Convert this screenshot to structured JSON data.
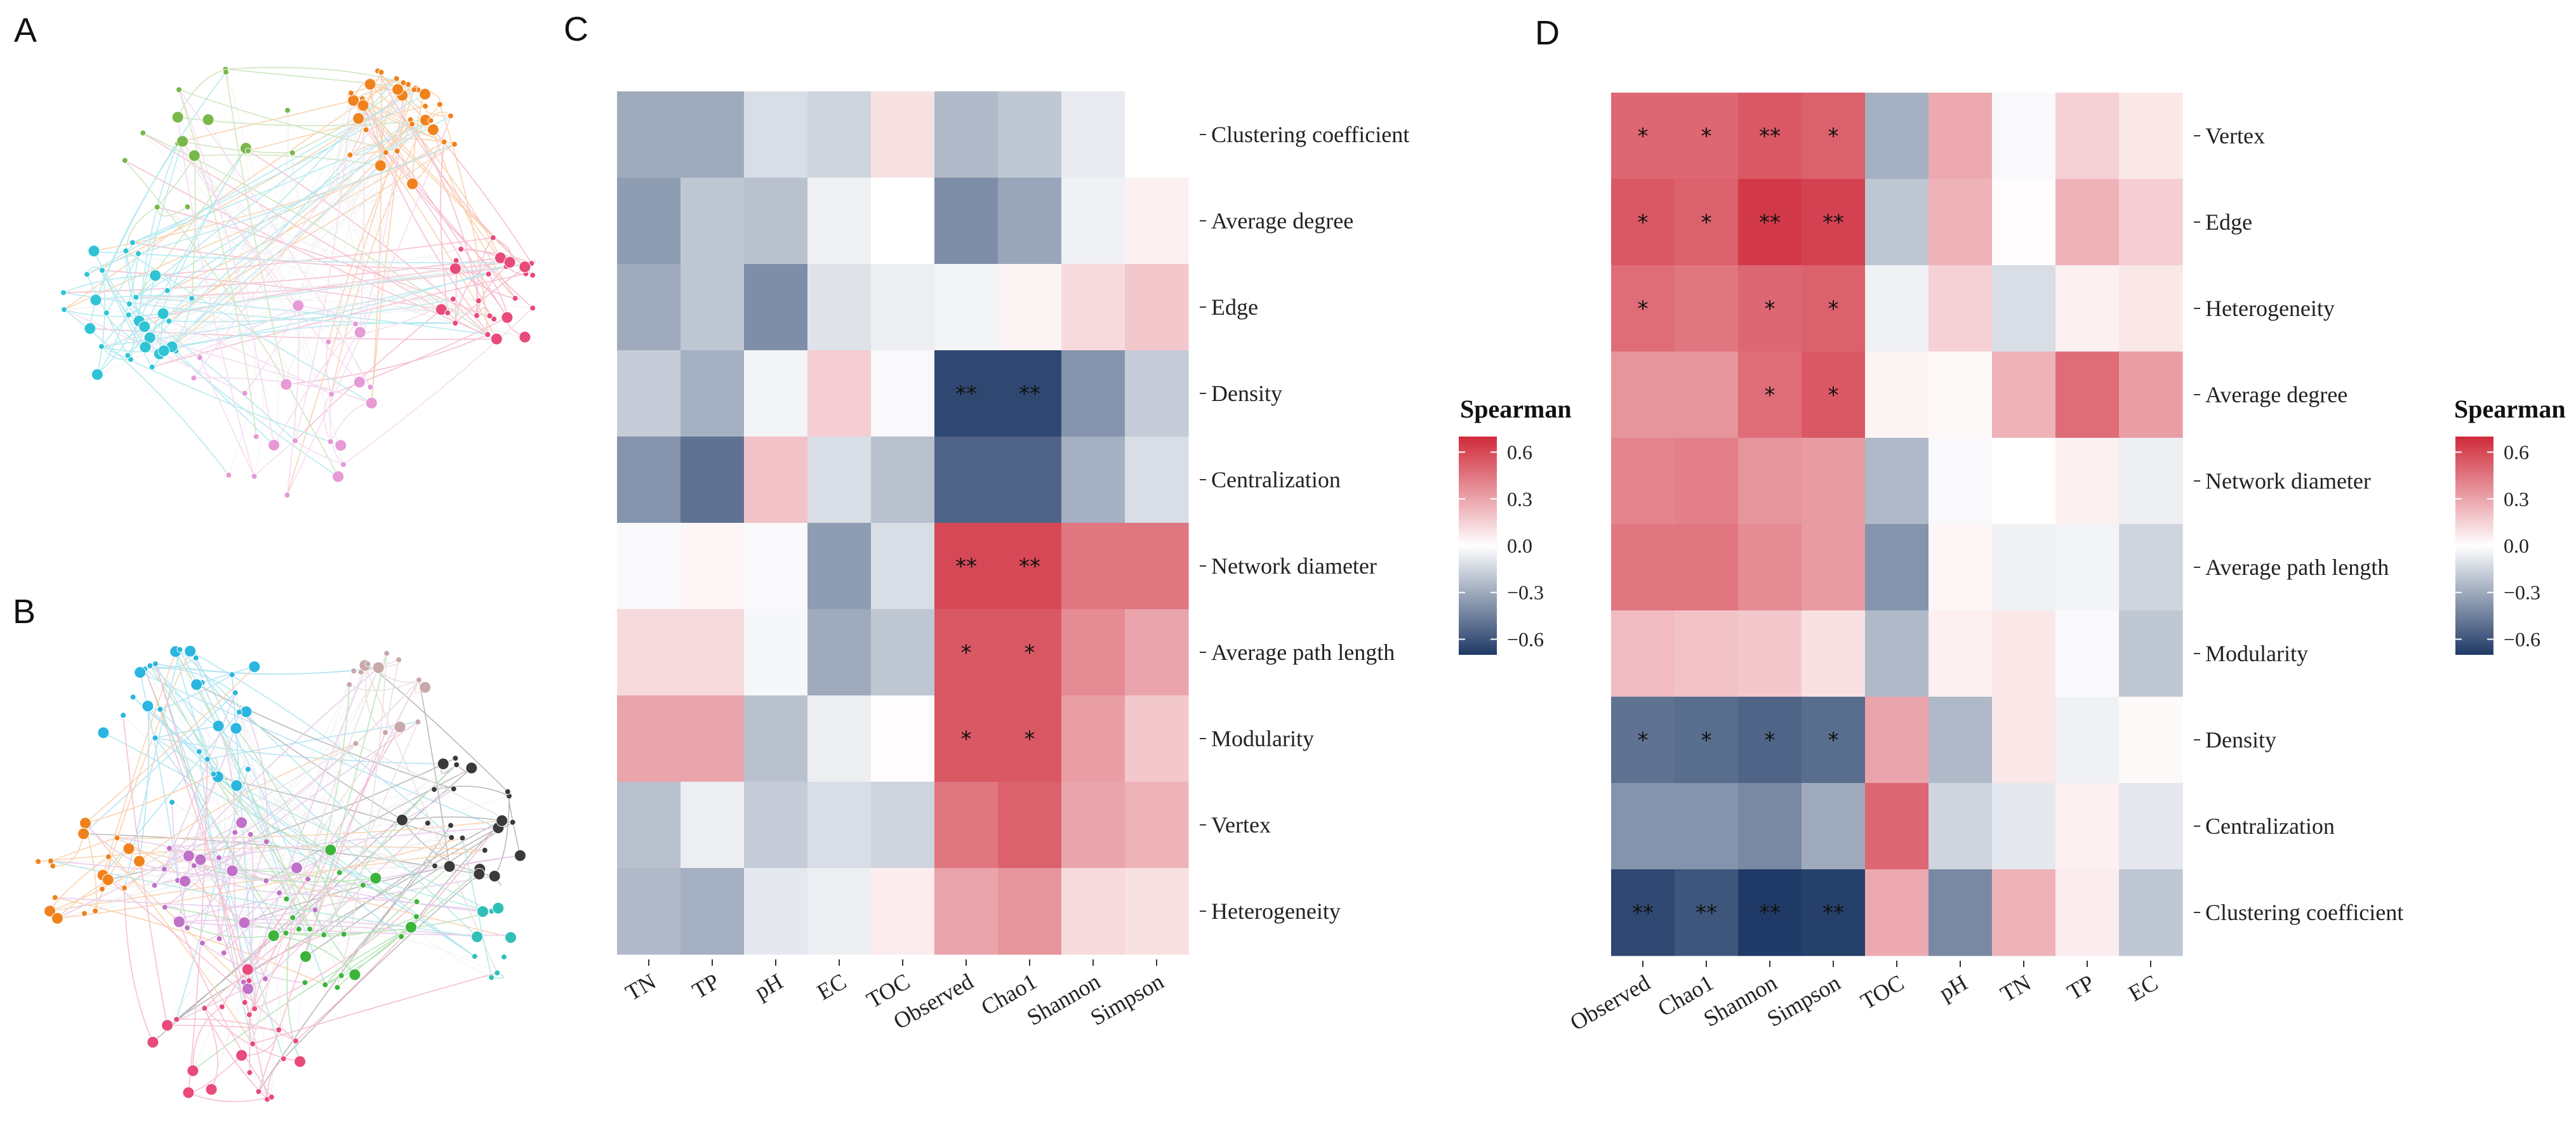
{
  "panels": {
    "a": "A",
    "b": "B",
    "c": "C",
    "d": "D"
  },
  "colors": {
    "neg": "#1f3a66",
    "mid": "#ffffff",
    "pos": "#cf2a3a"
  },
  "networks": [
    {
      "panel": "A",
      "description_clusters": [
        {
          "color": "#f0821e"
        },
        {
          "color": "#e84a7a"
        },
        {
          "color": "#2ec4d6"
        },
        {
          "color": "#78b84a"
        },
        {
          "color": "#e69ad6"
        }
      ]
    },
    {
      "panel": "B",
      "description_clusters": [
        {
          "color": "#2ab6e0"
        },
        {
          "color": "#3a3a3a"
        },
        {
          "color": "#f0821e"
        },
        {
          "color": "#c070c8"
        },
        {
          "color": "#3cb43c"
        },
        {
          "color": "#e84a7a"
        },
        {
          "color": "#c8a8a8"
        },
        {
          "color": "#30c0b8"
        }
      ]
    }
  ],
  "chart_data": [
    {
      "type": "heatmap",
      "panel": "C",
      "title": "",
      "columns": [
        "TN",
        "TP",
        "pH",
        "EC",
        "TOC",
        "Observed",
        "Chao1",
        "Shannon",
        "Simpson"
      ],
      "rows": [
        "Clustering coefficient",
        "Average degree",
        "Edge",
        "Density",
        "Centralization",
        "Network diameter",
        "Average path length",
        "Modularity",
        "Vertex",
        "Heterogeneity"
      ],
      "values": [
        [
          -0.3,
          -0.3,
          -0.12,
          -0.15,
          0.1,
          -0.25,
          -0.2,
          -0.07,
          0.0
        ],
        [
          -0.35,
          -0.2,
          -0.22,
          -0.05,
          0.0,
          -0.4,
          -0.32,
          -0.05,
          0.05
        ],
        [
          -0.3,
          -0.2,
          -0.4,
          -0.1,
          -0.06,
          -0.04,
          0.04,
          0.12,
          0.18
        ],
        [
          -0.18,
          -0.28,
          -0.04,
          0.16,
          -0.02,
          -0.65,
          -0.65,
          -0.38,
          -0.18
        ],
        [
          -0.38,
          -0.5,
          0.2,
          -0.12,
          -0.22,
          -0.55,
          -0.55,
          -0.28,
          -0.12
        ],
        [
          -0.02,
          0.03,
          -0.02,
          -0.35,
          -0.12,
          0.6,
          0.6,
          0.45,
          0.45
        ],
        [
          0.12,
          0.12,
          -0.03,
          -0.3,
          -0.2,
          0.55,
          0.55,
          0.38,
          0.3
        ],
        [
          0.3,
          0.3,
          -0.22,
          -0.06,
          0.01,
          0.55,
          0.55,
          0.32,
          0.18
        ],
        [
          -0.22,
          -0.06,
          -0.18,
          -0.12,
          -0.15,
          0.45,
          0.52,
          0.3,
          0.25
        ],
        [
          -0.25,
          -0.28,
          -0.08,
          -0.06,
          0.06,
          0.3,
          0.35,
          0.12,
          0.1
        ]
      ],
      "stars": [
        [
          "",
          "",
          "",
          "",
          "",
          "",
          "",
          "",
          ""
        ],
        [
          "",
          "",
          "",
          "",
          "",
          "",
          "",
          "",
          ""
        ],
        [
          "",
          "",
          "",
          "",
          "",
          "",
          "",
          "",
          ""
        ],
        [
          "",
          "",
          "",
          "",
          "",
          "**",
          "**",
          "",
          ""
        ],
        [
          "",
          "",
          "",
          "",
          "",
          "",
          "",
          "",
          ""
        ],
        [
          "",
          "",
          "",
          "",
          "",
          "**",
          "**",
          "",
          ""
        ],
        [
          "",
          "",
          "",
          "",
          "",
          "*",
          "*",
          "",
          ""
        ],
        [
          "",
          "",
          "",
          "",
          "",
          "*",
          "*",
          "",
          ""
        ],
        [
          "",
          "",
          "",
          "",
          "",
          "",
          "",
          "",
          ""
        ],
        [
          "",
          "",
          "",
          "",
          "",
          "",
          "",
          "",
          ""
        ]
      ],
      "blank_cells": [
        [
          0,
          8
        ]
      ],
      "legend": {
        "title": "Spearman",
        "ticks": [
          0.6,
          0.3,
          0.0,
          -0.3,
          -0.6
        ],
        "tick_labels": [
          "0.6",
          "0.3",
          "0.0",
          "−0.3",
          "−0.6"
        ],
        "range": [
          -0.7,
          0.7
        ]
      }
    },
    {
      "type": "heatmap",
      "panel": "D",
      "title": "",
      "columns": [
        "Observed",
        "Chao1",
        "Shannon",
        "Simpson",
        "TOC",
        "pH",
        "TN",
        "TP",
        "EC"
      ],
      "rows": [
        "Vertex",
        "Edge",
        "Heterogeneity",
        "Average degree",
        "Network diameter",
        "Average path length",
        "Modularity",
        "Density",
        "Centralization",
        "Clustering coefficient"
      ],
      "values": [
        [
          0.5,
          0.5,
          0.55,
          0.52,
          -0.28,
          0.28,
          -0.02,
          0.15,
          0.08
        ],
        [
          0.55,
          0.52,
          0.65,
          0.62,
          -0.2,
          0.25,
          0.01,
          0.25,
          0.16
        ],
        [
          0.48,
          0.45,
          0.5,
          0.52,
          -0.05,
          0.15,
          -0.12,
          0.05,
          0.08
        ],
        [
          0.35,
          0.35,
          0.48,
          0.55,
          0.04,
          0.02,
          0.25,
          0.48,
          0.32
        ],
        [
          0.4,
          0.42,
          0.35,
          0.33,
          -0.25,
          -0.02,
          0.0,
          0.05,
          -0.06
        ],
        [
          0.45,
          0.45,
          0.38,
          0.33,
          -0.38,
          0.03,
          -0.05,
          -0.04,
          -0.15
        ],
        [
          0.22,
          0.2,
          0.18,
          0.1,
          -0.25,
          0.05,
          0.08,
          -0.02,
          -0.2
        ],
        [
          -0.5,
          -0.52,
          -0.55,
          -0.52,
          0.3,
          -0.25,
          0.08,
          -0.05,
          0.02
        ],
        [
          -0.38,
          -0.38,
          -0.42,
          -0.3,
          0.5,
          -0.15,
          -0.08,
          0.05,
          -0.08
        ],
        [
          -0.65,
          -0.6,
          -0.72,
          -0.68,
          0.28,
          -0.42,
          0.25,
          0.06,
          -0.2
        ]
      ],
      "stars": [
        [
          "*",
          "*",
          "**",
          "*",
          "",
          "",
          "",
          "",
          ""
        ],
        [
          "*",
          "*",
          "**",
          "**",
          "",
          "",
          "",
          "",
          ""
        ],
        [
          "*",
          "",
          "*",
          "*",
          "",
          "",
          "",
          "",
          ""
        ],
        [
          "",
          "",
          "*",
          "*",
          "",
          "",
          "",
          "",
          ""
        ],
        [
          "",
          "",
          "",
          "",
          "",
          "",
          "",
          "",
          ""
        ],
        [
          "",
          "",
          "",
          "",
          "",
          "",
          "",
          "",
          ""
        ],
        [
          "",
          "",
          "",
          "",
          "",
          "",
          "",
          "",
          ""
        ],
        [
          "*",
          "*",
          "*",
          "*",
          "",
          "",
          "",
          "",
          ""
        ],
        [
          "",
          "",
          "",
          "",
          "",
          "",
          "",
          "",
          ""
        ],
        [
          "**",
          "**",
          "**",
          "**",
          "",
          "",
          "",
          "",
          ""
        ]
      ],
      "blank_cells": [],
      "legend": {
        "title": "Spearman",
        "ticks": [
          0.6,
          0.3,
          0.0,
          -0.3,
          -0.6
        ],
        "tick_labels": [
          "0.6",
          "0.3",
          "0.0",
          "−0.3",
          "−0.6"
        ],
        "range": [
          -0.7,
          0.7
        ]
      }
    }
  ]
}
